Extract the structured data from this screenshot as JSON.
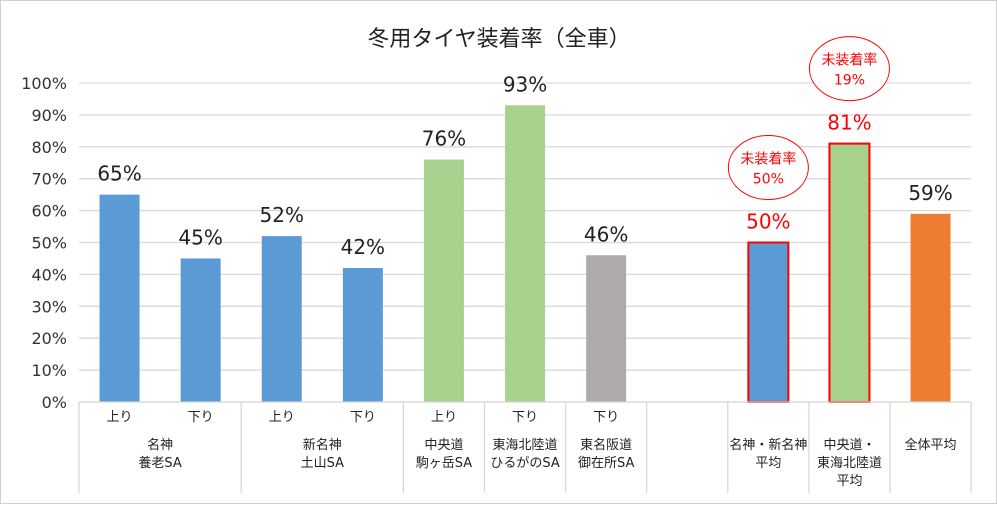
{
  "chart_data": {
    "type": "bar",
    "title": "冬用タイヤ装着率（全車）",
    "ylim": [
      0,
      100
    ],
    "yticks": [
      "0%",
      "10%",
      "20%",
      "30%",
      "40%",
      "50%",
      "60%",
      "70%",
      "80%",
      "90%",
      "100%"
    ],
    "grid": true,
    "bars": [
      {
        "sub": "上り",
        "value": 65,
        "label": "65%",
        "color": "#5b9bd5"
      },
      {
        "sub": "下り",
        "value": 45,
        "label": "45%",
        "color": "#5b9bd5"
      },
      {
        "sub": "上り",
        "value": 52,
        "label": "52%",
        "color": "#5b9bd5"
      },
      {
        "sub": "下り",
        "value": 42,
        "label": "42%",
        "color": "#5b9bd5"
      },
      {
        "sub": "上り",
        "value": 76,
        "label": "76%",
        "color": "#a9d18e"
      },
      {
        "sub": "下り",
        "value": 93,
        "label": "93%",
        "color": "#a9d18e"
      },
      {
        "sub": "下り",
        "value": 46,
        "label": "46%",
        "color": "#aeaaaa"
      },
      {
        "sub": "",
        "value": null,
        "label": "",
        "color": ""
      },
      {
        "sub": "",
        "value": 50,
        "label": "50%",
        "color": "#5b9bd5",
        "highlight": true
      },
      {
        "sub": "",
        "value": 81,
        "label": "81%",
        "color": "#a9d18e",
        "highlight": true
      },
      {
        "sub": "",
        "value": 59,
        "label": "59%",
        "color": "#ed7d31"
      }
    ],
    "groups": [
      {
        "start": 0,
        "span": 2,
        "lines": [
          "名神",
          "養老SA"
        ]
      },
      {
        "start": 2,
        "span": 2,
        "lines": [
          "新名神",
          "土山SA"
        ]
      },
      {
        "start": 4,
        "span": 1,
        "lines": [
          "中央道",
          "駒ヶ岳SA"
        ]
      },
      {
        "start": 5,
        "span": 1,
        "lines": [
          "東海北陸道",
          "ひるがのSA"
        ]
      },
      {
        "start": 6,
        "span": 1,
        "lines": [
          "東名阪道",
          "御在所SA"
        ]
      },
      {
        "start": 7,
        "span": 1,
        "lines": []
      },
      {
        "start": 8,
        "span": 1,
        "lines": [
          "名神・新名神",
          "平均"
        ]
      },
      {
        "start": 9,
        "span": 1,
        "lines": [
          "中央道・",
          "東海北陸道",
          "平均"
        ]
      },
      {
        "start": 10,
        "span": 1,
        "lines": [
          "全体平均"
        ]
      }
    ],
    "annotations": [
      {
        "bar": 8,
        "lines": [
          "未装着率",
          "50%"
        ]
      },
      {
        "bar": 9,
        "lines": [
          "未装着率",
          "19%"
        ]
      }
    ],
    "highlight_color": "#ff0000"
  }
}
